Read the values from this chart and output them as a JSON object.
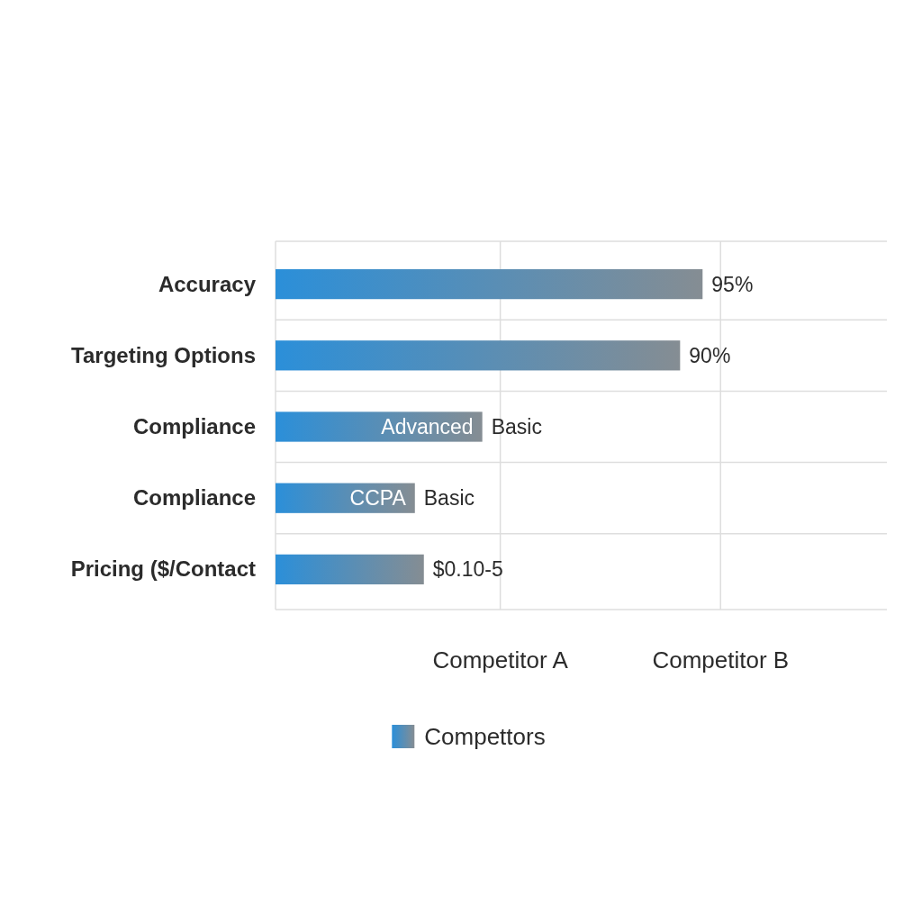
{
  "chart_data": {
    "type": "bar",
    "orientation": "horizontal",
    "categories": [
      "Accuracy",
      "Targeting Options",
      "Compliance",
      "Compliance",
      "Pricing ($/Contact"
    ],
    "series": [
      {
        "name": "Compettors",
        "color": "#2b8fd9",
        "values": [
          95,
          90,
          46,
          31,
          33
        ],
        "value_labels": [
          "95%",
          "90%",
          "Basic",
          "Basic",
          "$0.10-5"
        ]
      }
    ],
    "xlim": [
      0,
      136
    ],
    "tick_labels": "y",
    "annotations": [
      {
        "text": "Advanced",
        "x": 46,
        "y": "Compliance"
      },
      {
        "text": "CCPA",
        "x": 31
      }
    ],
    "ref_lines": [
      {
        "axis": "x",
        "value": 50,
        "label": "Competitor A",
        "color": "#dddddd"
      },
      {
        "axis": "x",
        "value": 99,
        "label": "Competitor B",
        "color": "#dddddd"
      }
    ],
    "grid": "y",
    "legend": "bottom"
  }
}
